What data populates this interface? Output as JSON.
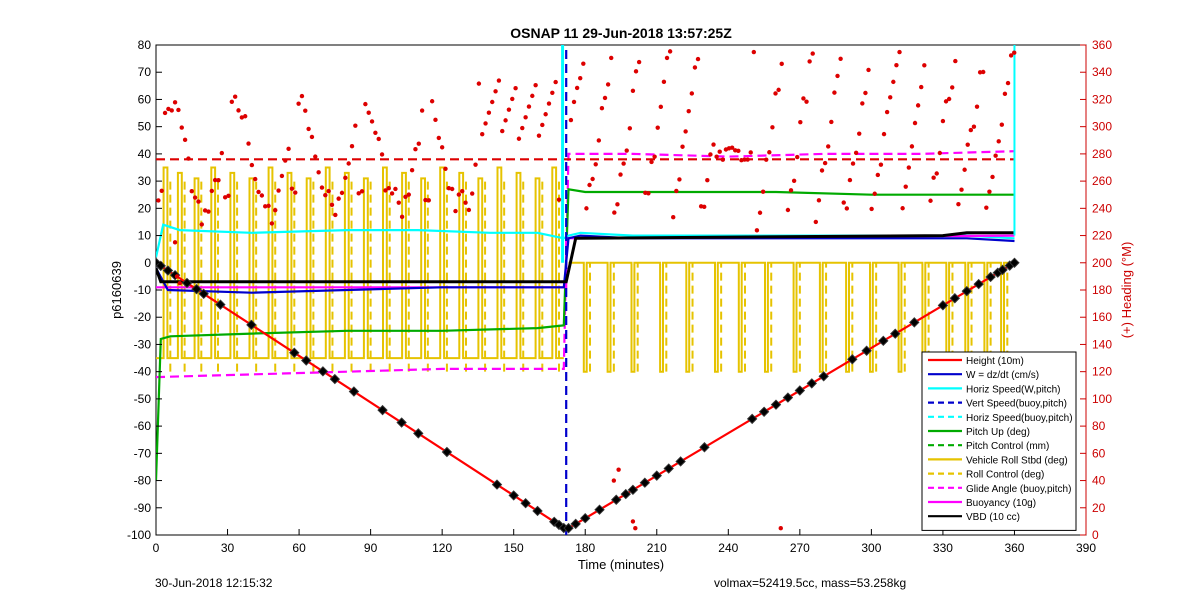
{
  "chart_data": {
    "type": "line",
    "title": "OSNAP 11 29-Jun-2018 13:57:25Z",
    "xlabel": "Time (minutes)",
    "ylabel_left": "p6160639",
    "ylabel_right": "(+) Heading (°M)",
    "xlim": [
      0,
      390
    ],
    "ylim_left": [
      -100,
      80
    ],
    "ylim_right": [
      0,
      360
    ],
    "x_ticks": [
      0,
      30,
      60,
      90,
      120,
      150,
      180,
      210,
      240,
      270,
      300,
      330,
      360,
      390
    ],
    "y_ticks_left": [
      -100,
      -90,
      -80,
      -70,
      -60,
      -50,
      -40,
      -30,
      -20,
      -10,
      0,
      10,
      20,
      30,
      40,
      50,
      60,
      70,
      80
    ],
    "y_ticks_right": [
      0,
      20,
      40,
      60,
      80,
      100,
      120,
      140,
      160,
      180,
      200,
      220,
      240,
      260,
      280,
      300,
      320,
      340,
      360
    ],
    "legend_position": "bottom-right",
    "colors": {
      "height": "#ff0000",
      "w": "#0000cc",
      "horiz": "#00ffff",
      "vert_buoy": "#0000cc",
      "pitch": "#00aa00",
      "roll": "#e6c300",
      "glide": "#ff00ff",
      "buoyancy": "#ff00ff",
      "vbd": "#000000",
      "heading": "#dd0000"
    },
    "series": [
      {
        "name": "Height (10m)",
        "style": "solid",
        "color": "#ff0000",
        "x": [
          0,
          172,
          360
        ],
        "y": [
          0,
          -98,
          0
        ],
        "markers": true
      },
      {
        "name": "W = dz/dt (cm/s)",
        "style": "solid",
        "color": "#0000cc",
        "x": [
          0,
          5,
          40,
          80,
          120,
          160,
          171,
          173,
          178,
          200,
          240,
          280,
          320,
          340,
          360
        ],
        "y": [
          -2,
          -10,
          -11,
          -10,
          -9,
          -9,
          -9,
          9,
          10,
          9,
          9,
          9,
          9,
          9,
          8
        ]
      },
      {
        "name": "Horiz Speed(W,pitch)",
        "style": "solid",
        "color": "#00ffff",
        "x": [
          0,
          3,
          10,
          40,
          80,
          110,
          140,
          160,
          171,
          173,
          178,
          200,
          240,
          280,
          320,
          340,
          360
        ],
        "y": [
          2,
          14,
          12,
          11,
          12,
          12,
          11,
          11,
          9,
          10,
          11,
          10,
          10,
          10,
          10,
          10,
          9
        ]
      },
      {
        "name": "Vert Speed(buoy,pitch)",
        "style": "dashed",
        "color": "#0000cc",
        "x": [
          172,
          172
        ],
        "y": [
          -100,
          80
        ]
      },
      {
        "name": "Horiz Speed(buoy,pitch)",
        "style": "dashed",
        "color": "#00ffff",
        "x": [],
        "y": []
      },
      {
        "name": "Pitch Up (deg)",
        "style": "solid",
        "color": "#00aa00",
        "x": [
          0,
          2,
          6,
          40,
          80,
          120,
          160,
          171,
          173,
          180,
          220,
          260,
          300,
          340,
          360
        ],
        "y": [
          -80,
          -28,
          -27,
          -26,
          -25,
          -25,
          -24,
          -23,
          27,
          26,
          26,
          26,
          25,
          25,
          25
        ]
      },
      {
        "name": "Pitch Control (mm)",
        "style": "dashed",
        "color": "#00aa00",
        "x": [],
        "y": []
      },
      {
        "name": "Vehicle Roll Stbd (deg)",
        "style": "solid",
        "color": "#e6c300",
        "x": [
          0,
          172,
          172,
          360
        ],
        "y": [
          -35,
          -35,
          0,
          0
        ]
      },
      {
        "name": "Roll Control (deg)",
        "style": "dashed",
        "color": "#e6c300",
        "x": [],
        "y": []
      },
      {
        "name": "Glide Angle (buoy,pitch)",
        "style": "dashed",
        "color": "#ff00ff",
        "x": [
          0,
          40,
          80,
          120,
          171,
          173,
          200,
          240,
          280,
          320,
          360
        ],
        "y": [
          -42,
          -41,
          -40,
          -39,
          -39,
          40,
          40,
          39,
          40,
          40,
          41
        ]
      },
      {
        "name": "Buoyancy (10g)",
        "style": "solid",
        "color": "#ff00ff",
        "x": [
          0,
          172,
          172,
          360
        ],
        "y": [
          -9,
          -9,
          9,
          10
        ]
      },
      {
        "name": "VBD (10 cc)",
        "style": "solid",
        "color": "#000000",
        "x": [
          0,
          2,
          170,
          172,
          176,
          330,
          340,
          360
        ],
        "y": [
          -2,
          -7,
          -7,
          -7,
          9,
          10,
          11,
          11
        ]
      },
      {
        "name": "Heading (right axis, °M)",
        "style": "markers",
        "color": "#dd0000",
        "x": [],
        "y": []
      },
      {
        "name": "Heading reference (right axis)",
        "style": "dashed",
        "color": "#dd0000",
        "x": [
          0,
          360
        ],
        "y": [
          276,
          276
        ]
      }
    ],
    "legend": [
      "Height (10m)",
      "W = dz/dt (cm/s)",
      "Horiz Speed(W,pitch)",
      "Vert Speed(buoy,pitch)",
      "Horiz Speed(buoy,pitch)",
      "Pitch Up (deg)",
      "Pitch Control (mm)",
      "Vehicle Roll Stbd (deg)",
      "Roll Control (deg)",
      "Glide Angle (buoy,pitch)",
      "Buoyancy (10g)",
      "VBD (10 cc)"
    ]
  },
  "footer": {
    "left": "30-Jun-2018 12:15:32",
    "right": "volmax=52419.5cc, mass=53.258kg"
  }
}
